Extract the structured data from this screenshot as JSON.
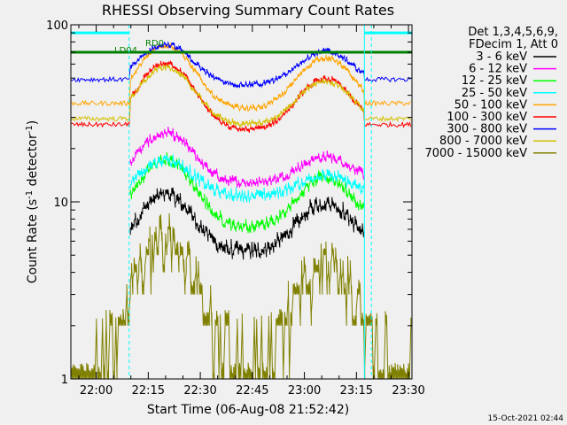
{
  "chart_data": {
    "type": "line",
    "title": "RHESSI Observing Summary Count Rates",
    "xlabel": "Start Time (06-Aug-08 21:52:42)",
    "ylabel_main": "Count Rate (s",
    "ylabel_sup": "-1",
    "ylabel_tail": " detector",
    "ylabel_sup2": "-1",
    "ylabel_close": ")",
    "yscale": "log",
    "ylim": [
      1,
      100
    ],
    "xlim_minutes": [
      -7.3,
      91.0
    ],
    "x_tick_labels": [
      "22:00",
      "22:15",
      "22:30",
      "22:45",
      "23:00",
      "23:15",
      "23:30"
    ],
    "x_tick_minutes": [
      0,
      15,
      30,
      45,
      60,
      75,
      90
    ],
    "y_tick_labels": [
      "1",
      "10",
      "100"
    ],
    "y_tick_values": [
      1,
      10,
      100
    ],
    "legend_header": [
      "Det 1,3,4,5,6,9,",
      "FDecim 1, Att 0"
    ],
    "annotations": [
      "LD04",
      "RD0"
    ],
    "timestamp": "15-Oct-2021 02:44",
    "boundaries_minutes": [
      {
        "t": -7.3,
        "style": "solid"
      },
      {
        "t": 9.5,
        "style": "dashed"
      },
      {
        "t": 77.3,
        "style": "solid"
      },
      {
        "t": 79.3,
        "style": "dashed"
      },
      {
        "t": 91.0,
        "style": "dashed"
      }
    ],
    "night_segments_minutes": [
      [
        -7.3,
        9.5
      ],
      [
        77.3,
        91.0
      ]
    ],
    "flag_segments": [
      {
        "name": "saa",
        "color": "#00ffff",
        "y": 90,
        "ranges": [
          [
            -7.3,
            9.5
          ],
          [
            77.3,
            91.0
          ]
        ]
      },
      {
        "name": "decim",
        "color": "#008000",
        "y": 70,
        "ranges": [
          [
            -7.3,
            91.0
          ]
        ]
      }
    ],
    "series": [
      {
        "name": "3 - 6 keV",
        "color": "#000000",
        "base": 5.0,
        "peaks": [
          2.1,
          1.9
        ],
        "noise": 0.08
      },
      {
        "name": "6 - 12 keV",
        "color": "#ff00ff",
        "base": 12.5,
        "peaks": [
          1.9,
          1.4
        ],
        "noise": 0.05
      },
      {
        "name": "12 - 25 keV",
        "color": "#00ff00",
        "base": 7.0,
        "peaks": [
          2.4,
          1.9
        ],
        "noise": 0.06
      },
      {
        "name": "25 - 50 keV",
        "color": "#00ffff",
        "base": 10.5,
        "peaks": [
          1.6,
          1.3
        ],
        "noise": 0.06
      },
      {
        "name": "50 - 100 keV",
        "color": "#ffa500",
        "base": 33.0,
        "peaks": [
          2.3,
          1.95
        ],
        "noise": 0.03
      },
      {
        "name": "100 - 300 keV",
        "color": "#ff0000",
        "base": 25.0,
        "peaks": [
          2.4,
          1.95
        ],
        "noise": 0.03
      },
      {
        "name": "300 - 800 keV",
        "color": "#0000ff",
        "base": 45.0,
        "peaks": [
          1.7,
          1.55
        ],
        "noise": 0.03
      },
      {
        "name": "800 - 7000 keV",
        "color": "#d4c000",
        "base": 27.0,
        "peaks": [
          2.1,
          1.75
        ],
        "noise": 0.03
      },
      {
        "name": "7000 - 15000 keV",
        "color": "#808000",
        "base": 1.2,
        "peaks": [
          4.5,
          3.2
        ],
        "noise": 0.16
      }
    ],
    "peak_centers_minutes": [
      20,
      66
    ],
    "peak_width_minutes": 10
  }
}
